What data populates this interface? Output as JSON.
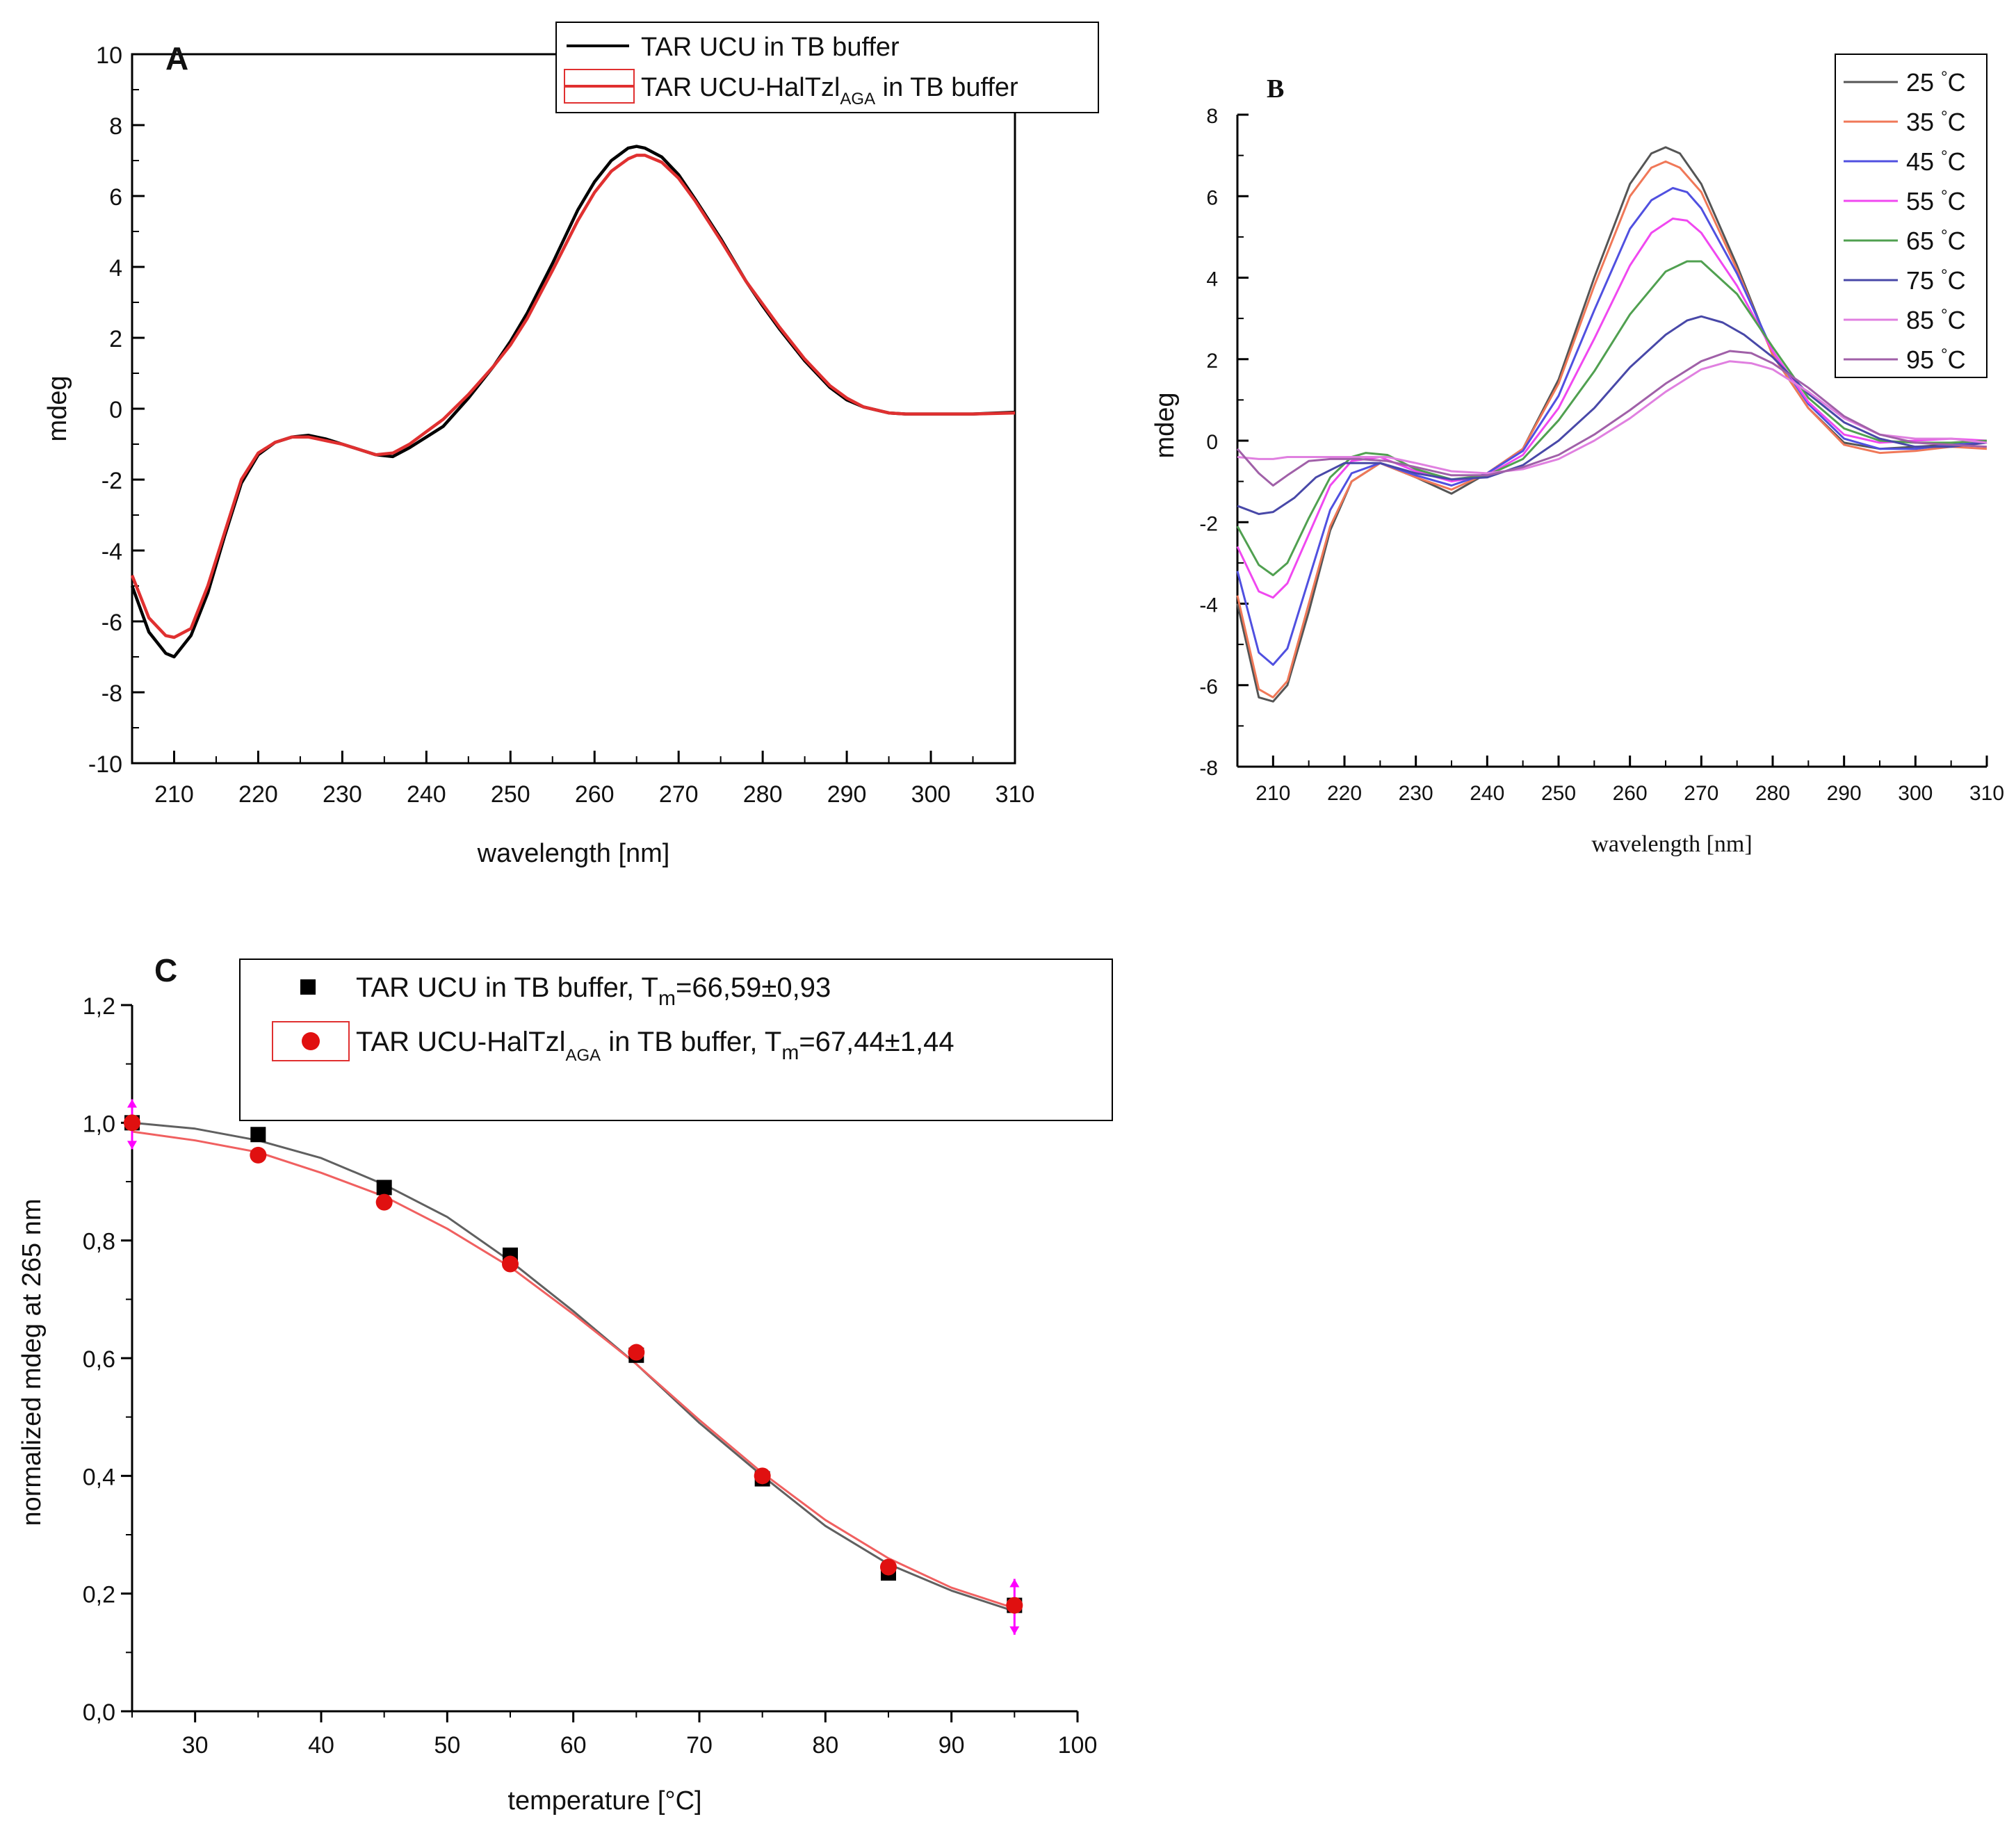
{
  "chart_data": [
    {
      "id": "A",
      "type": "line",
      "panel_label": "A",
      "xlabel": "wavelength [nm]",
      "ylabel": "mdeg",
      "xlim": [
        205,
        310
      ],
      "ylim": [
        -10,
        10
      ],
      "xticks": [
        210,
        220,
        230,
        240,
        250,
        260,
        270,
        280,
        290,
        300,
        310
      ],
      "yticks": [
        -10,
        -8,
        -6,
        -4,
        -2,
        0,
        2,
        4,
        6,
        8,
        10
      ],
      "legend": [
        {
          "main": "TAR UCU in TB buffer",
          "sub": "",
          "tail": ""
        },
        {
          "main": "TAR UCU-HalTzl",
          "sub": "AGA",
          "tail": " in TB buffer"
        }
      ],
      "series": [
        {
          "name": "TAR UCU in TB buffer",
          "color": "#000000",
          "x": [
            205,
            207,
            209,
            210,
            212,
            214,
            216,
            218,
            220,
            222,
            224,
            226,
            228,
            230,
            232,
            234,
            236,
            238,
            240,
            242,
            245,
            248,
            250,
            252,
            255,
            258,
            260,
            262,
            264,
            265,
            266,
            268,
            270,
            272,
            275,
            278,
            280,
            282,
            285,
            288,
            290,
            292,
            295,
            297,
            300,
            305,
            310
          ],
          "y": [
            -5.0,
            -6.3,
            -6.9,
            -7.0,
            -6.4,
            -5.2,
            -3.6,
            -2.1,
            -1.3,
            -0.95,
            -0.8,
            -0.75,
            -0.85,
            -1.0,
            -1.15,
            -1.3,
            -1.35,
            -1.1,
            -0.8,
            -0.5,
            0.3,
            1.2,
            1.9,
            2.7,
            4.1,
            5.6,
            6.4,
            7.0,
            7.35,
            7.4,
            7.35,
            7.1,
            6.6,
            5.9,
            4.8,
            3.6,
            2.9,
            2.25,
            1.35,
            0.6,
            0.25,
            0.05,
            -0.12,
            -0.15,
            -0.15,
            -0.15,
            -0.1
          ]
        },
        {
          "name": "TAR UCU-HalTzl AGA in TB buffer",
          "color": "#e03030",
          "x": [
            205,
            207,
            209,
            210,
            212,
            214,
            216,
            218,
            220,
            222,
            224,
            226,
            228,
            230,
            232,
            234,
            236,
            238,
            240,
            242,
            245,
            248,
            250,
            252,
            255,
            258,
            260,
            262,
            264,
            265,
            266,
            268,
            270,
            272,
            275,
            278,
            280,
            282,
            285,
            288,
            290,
            292,
            295,
            297,
            300,
            305,
            310
          ],
          "y": [
            -4.7,
            -5.9,
            -6.4,
            -6.45,
            -6.2,
            -5.0,
            -3.5,
            -2.0,
            -1.25,
            -0.95,
            -0.8,
            -0.8,
            -0.9,
            -1.0,
            -1.15,
            -1.3,
            -1.25,
            -1.0,
            -0.65,
            -0.3,
            0.4,
            1.2,
            1.8,
            2.55,
            3.9,
            5.3,
            6.1,
            6.7,
            7.05,
            7.15,
            7.15,
            6.95,
            6.5,
            5.85,
            4.75,
            3.6,
            2.95,
            2.3,
            1.4,
            0.65,
            0.3,
            0.05,
            -0.12,
            -0.15,
            -0.15,
            -0.15,
            -0.12
          ]
        }
      ]
    },
    {
      "id": "B",
      "type": "line",
      "panel_label": "B",
      "xlabel": "wavelength [nm]",
      "ylabel": "mdeg",
      "xlim": [
        205,
        310
      ],
      "ylim": [
        -8,
        8
      ],
      "xticks": [
        210,
        220,
        230,
        240,
        250,
        260,
        270,
        280,
        290,
        300,
        310
      ],
      "yticks": [
        -8,
        -6,
        -4,
        -2,
        0,
        2,
        4,
        6,
        8
      ],
      "legend_unit": "°C",
      "series": [
        {
          "name": "25",
          "color": "#555555",
          "x": [
            205,
            208,
            210,
            212,
            215,
            218,
            221,
            225,
            230,
            235,
            240,
            245,
            250,
            255,
            260,
            263,
            265,
            267,
            270,
            275,
            280,
            285,
            290,
            295,
            300,
            305,
            310
          ],
          "y": [
            -4.0,
            -6.3,
            -6.4,
            -6.0,
            -4.2,
            -2.2,
            -1.0,
            -0.55,
            -0.9,
            -1.3,
            -0.8,
            -0.2,
            1.5,
            4.0,
            6.3,
            7.05,
            7.2,
            7.05,
            6.3,
            4.3,
            2.1,
            0.8,
            -0.05,
            -0.2,
            -0.15,
            -0.1,
            -0.05
          ]
        },
        {
          "name": "35",
          "color": "#f07858",
          "x": [
            205,
            208,
            210,
            212,
            215,
            218,
            221,
            225,
            230,
            235,
            240,
            245,
            250,
            255,
            260,
            263,
            265,
            267,
            270,
            275,
            280,
            285,
            290,
            295,
            300,
            305,
            310
          ],
          "y": [
            -3.8,
            -6.1,
            -6.3,
            -5.9,
            -4.0,
            -2.1,
            -1.0,
            -0.55,
            -0.9,
            -1.2,
            -0.8,
            -0.2,
            1.4,
            3.8,
            6.0,
            6.7,
            6.85,
            6.7,
            6.1,
            4.2,
            2.1,
            0.8,
            -0.1,
            -0.3,
            -0.25,
            -0.15,
            -0.2
          ]
        },
        {
          "name": "45",
          "color": "#5050e0",
          "x": [
            205,
            208,
            210,
            212,
            215,
            218,
            221,
            225,
            230,
            235,
            240,
            245,
            250,
            255,
            260,
            263,
            266,
            268,
            270,
            275,
            280,
            285,
            290,
            295,
            300,
            305,
            310
          ],
          "y": [
            -3.2,
            -5.2,
            -5.5,
            -5.1,
            -3.4,
            -1.7,
            -0.8,
            -0.55,
            -0.85,
            -1.1,
            -0.8,
            -0.25,
            1.1,
            3.2,
            5.2,
            5.9,
            6.2,
            6.1,
            5.7,
            4.1,
            2.2,
            0.9,
            0.05,
            -0.2,
            -0.2,
            -0.1,
            -0.05
          ]
        },
        {
          "name": "55",
          "color": "#f048f0",
          "x": [
            205,
            208,
            210,
            212,
            215,
            218,
            221,
            225,
            230,
            235,
            240,
            245,
            250,
            255,
            260,
            263,
            266,
            268,
            270,
            275,
            280,
            285,
            290,
            295,
            300,
            305,
            310
          ],
          "y": [
            -2.6,
            -3.7,
            -3.85,
            -3.5,
            -2.3,
            -1.1,
            -0.5,
            -0.4,
            -0.75,
            -1.0,
            -0.85,
            -0.35,
            0.8,
            2.5,
            4.3,
            5.1,
            5.45,
            5.4,
            5.1,
            3.8,
            2.2,
            0.95,
            0.15,
            -0.05,
            0.0,
            0.05,
            0.0
          ]
        },
        {
          "name": "65",
          "color": "#50a050",
          "x": [
            205,
            208,
            210,
            212,
            215,
            218,
            221,
            223,
            226,
            230,
            235,
            240,
            245,
            250,
            255,
            260,
            265,
            268,
            270,
            275,
            280,
            285,
            290,
            295,
            300,
            305,
            310
          ],
          "y": [
            -2.1,
            -3.05,
            -3.3,
            -3.0,
            -1.9,
            -0.9,
            -0.4,
            -0.3,
            -0.35,
            -0.7,
            -0.95,
            -0.85,
            -0.45,
            0.5,
            1.7,
            3.1,
            4.15,
            4.4,
            4.4,
            3.6,
            2.3,
            1.05,
            0.3,
            0.0,
            -0.05,
            -0.05,
            0.0
          ]
        },
        {
          "name": "75",
          "color": "#4848a8",
          "x": [
            205,
            208,
            210,
            213,
            216,
            220,
            225,
            230,
            235,
            240,
            245,
            250,
            255,
            260,
            265,
            268,
            270,
            273,
            276,
            280,
            285,
            290,
            295,
            300,
            305,
            310
          ],
          "y": [
            -1.6,
            -1.8,
            -1.75,
            -1.4,
            -0.9,
            -0.55,
            -0.55,
            -0.8,
            -0.95,
            -0.9,
            -0.6,
            0.0,
            0.8,
            1.8,
            2.6,
            2.95,
            3.05,
            2.9,
            2.6,
            2.05,
            1.15,
            0.45,
            0.05,
            -0.15,
            -0.15,
            -0.05
          ]
        },
        {
          "name": "85",
          "color": "#e080e0",
          "x": [
            205,
            208,
            210,
            212,
            215,
            218,
            222,
            226,
            230,
            235,
            240,
            245,
            250,
            255,
            260,
            265,
            270,
            274,
            277,
            280,
            285,
            290,
            295,
            300,
            305,
            310
          ],
          "y": [
            -0.4,
            -0.45,
            -0.45,
            -0.4,
            -0.4,
            -0.4,
            -0.4,
            -0.4,
            -0.55,
            -0.75,
            -0.8,
            -0.7,
            -0.45,
            0.0,
            0.55,
            1.2,
            1.75,
            1.95,
            1.9,
            1.75,
            1.2,
            0.55,
            0.15,
            0.05,
            0.05,
            -0.05
          ]
        },
        {
          "name": "95",
          "color": "#a060a8",
          "x": [
            205,
            208,
            210,
            212,
            215,
            218,
            222,
            226,
            230,
            235,
            240,
            245,
            250,
            255,
            260,
            265,
            270,
            274,
            277,
            280,
            285,
            290,
            295,
            300,
            305,
            310
          ],
          "y": [
            -0.2,
            -0.8,
            -1.1,
            -0.85,
            -0.5,
            -0.45,
            -0.45,
            -0.5,
            -0.65,
            -0.85,
            -0.85,
            -0.65,
            -0.35,
            0.15,
            0.75,
            1.4,
            1.95,
            2.2,
            2.15,
            1.9,
            1.3,
            0.6,
            0.15,
            -0.05,
            -0.1,
            -0.15
          ]
        }
      ]
    },
    {
      "id": "C",
      "type": "scatter",
      "panel_label": "C",
      "xlabel": "temperature [°C]",
      "ylabel": "normalized mdeg at 265 nm",
      "xlim": [
        25,
        100
      ],
      "ylim": [
        0.0,
        1.2
      ],
      "xticks": [
        30,
        40,
        50,
        60,
        70,
        80,
        90,
        100
      ],
      "yticks": [
        0.0,
        0.2,
        0.4,
        0.6,
        0.8,
        1.0,
        1.2
      ],
      "ytick_labels": [
        "0,0",
        "0,2",
        "0,4",
        "0,6",
        "0,8",
        "1,0",
        "1,2"
      ],
      "legend": [
        {
          "main": "TAR UCU in TB buffer, T",
          "sub_m": "m",
          "tail": "=66,59±0,93",
          "sub": ""
        },
        {
          "main": "TAR UCU-HalTzl",
          "sub": "AGA",
          "tail": " in TB buffer, T",
          "sub_m": "m",
          "tail2": "=67,44±1,44"
        }
      ],
      "series": [
        {
          "name": "TAR UCU in TB buffer",
          "marker": "square",
          "color": "#000000",
          "fit_color": "#606060",
          "x": [
            25,
            35,
            45,
            55,
            65,
            75,
            85,
            95
          ],
          "y": [
            1.0,
            0.98,
            0.89,
            0.775,
            0.605,
            0.395,
            0.235,
            0.18
          ],
          "fit_x": [
            25,
            30,
            35,
            40,
            45,
            50,
            55,
            60,
            65,
            70,
            75,
            80,
            85,
            90,
            95
          ],
          "fit_y": [
            1.0,
            0.99,
            0.97,
            0.94,
            0.895,
            0.84,
            0.765,
            0.68,
            0.59,
            0.49,
            0.4,
            0.315,
            0.25,
            0.205,
            0.17
          ]
        },
        {
          "name": "TAR UCU-HalTzl AGA in TB buffer",
          "marker": "circle",
          "color": "#e01010",
          "fit_color": "#f06060",
          "x": [
            25,
            35,
            45,
            55,
            65,
            75,
            85,
            95
          ],
          "y": [
            1.0,
            0.945,
            0.865,
            0.76,
            0.61,
            0.4,
            0.245,
            0.18
          ],
          "fit_x": [
            25,
            30,
            35,
            40,
            45,
            50,
            55,
            60,
            65,
            70,
            75,
            80,
            85,
            90,
            95
          ],
          "fit_y": [
            0.985,
            0.97,
            0.95,
            0.915,
            0.875,
            0.82,
            0.755,
            0.675,
            0.59,
            0.495,
            0.405,
            0.325,
            0.26,
            0.21,
            0.175
          ]
        }
      ],
      "error_bar_color": "#ff00ff",
      "error_bar_x": [
        25,
        95
      ],
      "error_bar_y": [
        [
          0.955,
          1.04
        ],
        [
          0.13,
          0.225
        ]
      ]
    }
  ]
}
